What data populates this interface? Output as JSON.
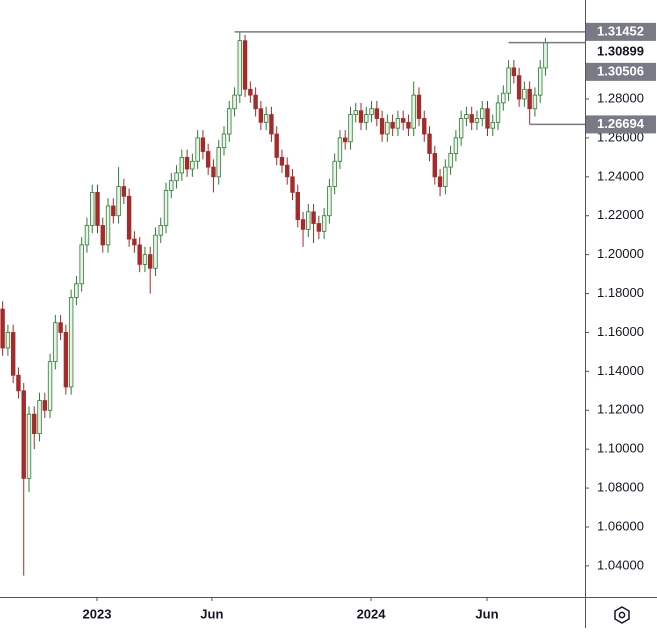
{
  "chart_data": {
    "type": "candlestick",
    "open": [
      1.172,
      1.152,
      1.16,
      1.138,
      1.13,
      1.085,
      1.118,
      1.108,
      1.125,
      1.12,
      1.145,
      1.165,
      1.16,
      1.132,
      1.178,
      1.185,
      1.205,
      1.215,
      1.232,
      1.215,
      1.205,
      1.225,
      1.22,
      1.235,
      1.23,
      1.208,
      1.205,
      1.195,
      1.2,
      1.193,
      1.21,
      1.215,
      1.233,
      1.238,
      1.242,
      1.25,
      1.244,
      1.248,
      1.26,
      1.253,
      1.245,
      1.24,
      1.255,
      1.262,
      1.275,
      1.282,
      1.31,
      1.285,
      1.282,
      1.275,
      1.268,
      1.272,
      1.262,
      1.25,
      1.246,
      1.24,
      1.232,
      1.218,
      1.213,
      1.222,
      1.216,
      1.212,
      1.22,
      1.235,
      1.248,
      1.26,
      1.258,
      1.272,
      1.274,
      1.268,
      1.272,
      1.275,
      1.27,
      1.262,
      1.268,
      1.265,
      1.27,
      1.268,
      1.265,
      1.282,
      1.27,
      1.262,
      1.252,
      1.24,
      1.235,
      1.245,
      1.252,
      1.26,
      1.27,
      1.272,
      1.268,
      1.27,
      1.275,
      1.265,
      1.268,
      1.278,
      1.283,
      1.296,
      1.292,
      1.28,
      1.285,
      1.275,
      1.282,
      1.296
    ],
    "high": [
      1.176,
      1.164,
      1.164,
      1.142,
      1.134,
      1.122,
      1.122,
      1.129,
      1.129,
      1.149,
      1.169,
      1.169,
      1.164,
      1.182,
      1.189,
      1.209,
      1.219,
      1.236,
      1.236,
      1.219,
      1.229,
      1.229,
      1.245,
      1.239,
      1.234,
      1.212,
      1.209,
      1.204,
      1.204,
      1.214,
      1.219,
      1.237,
      1.242,
      1.246,
      1.254,
      1.254,
      1.252,
      1.264,
      1.264,
      1.257,
      1.249,
      1.259,
      1.266,
      1.279,
      1.286,
      1.3145,
      1.313,
      1.289,
      1.286,
      1.279,
      1.276,
      1.276,
      1.266,
      1.254,
      1.25,
      1.244,
      1.236,
      1.222,
      1.226,
      1.226,
      1.22,
      1.224,
      1.239,
      1.252,
      1.264,
      1.264,
      1.276,
      1.278,
      1.278,
      1.276,
      1.279,
      1.279,
      1.274,
      1.272,
      1.272,
      1.274,
      1.274,
      1.272,
      1.289,
      1.286,
      1.274,
      1.266,
      1.256,
      1.244,
      1.249,
      1.256,
      1.264,
      1.274,
      1.276,
      1.276,
      1.274,
      1.279,
      1.279,
      1.272,
      1.282,
      1.287,
      1.3,
      1.3,
      1.296,
      1.289,
      1.289,
      1.286,
      1.3,
      1.3113
    ],
    "low": [
      1.148,
      1.148,
      1.134,
      1.126,
      1.035,
      1.078,
      1.1,
      1.104,
      1.116,
      1.116,
      1.141,
      1.156,
      1.128,
      1.128,
      1.174,
      1.181,
      1.201,
      1.211,
      1.211,
      1.201,
      1.201,
      1.216,
      1.216,
      1.226,
      1.204,
      1.201,
      1.191,
      1.191,
      1.18,
      1.189,
      1.206,
      1.211,
      1.229,
      1.234,
      1.238,
      1.24,
      1.24,
      1.244,
      1.249,
      1.241,
      1.232,
      1.236,
      1.251,
      1.258,
      1.271,
      1.278,
      1.281,
      1.278,
      1.271,
      1.264,
      1.264,
      1.258,
      1.246,
      1.242,
      1.236,
      1.228,
      1.214,
      1.204,
      1.209,
      1.206,
      1.208,
      1.208,
      1.216,
      1.231,
      1.244,
      1.254,
      1.254,
      1.268,
      1.264,
      1.264,
      1.268,
      1.266,
      1.258,
      1.258,
      1.261,
      1.261,
      1.264,
      1.261,
      1.261,
      1.266,
      1.258,
      1.248,
      1.236,
      1.23,
      1.231,
      1.241,
      1.248,
      1.256,
      1.266,
      1.264,
      1.264,
      1.266,
      1.261,
      1.261,
      1.264,
      1.274,
      1.279,
      1.288,
      1.276,
      1.276,
      1.2669,
      1.271,
      1.278,
      1.292
    ],
    "close": [
      1.152,
      1.16,
      1.138,
      1.13,
      1.085,
      1.118,
      1.108,
      1.125,
      1.12,
      1.145,
      1.165,
      1.16,
      1.132,
      1.178,
      1.185,
      1.205,
      1.215,
      1.232,
      1.215,
      1.205,
      1.225,
      1.22,
      1.235,
      1.23,
      1.208,
      1.205,
      1.195,
      1.2,
      1.193,
      1.21,
      1.215,
      1.233,
      1.238,
      1.242,
      1.25,
      1.244,
      1.248,
      1.26,
      1.253,
      1.245,
      1.24,
      1.255,
      1.262,
      1.275,
      1.282,
      1.31,
      1.285,
      1.282,
      1.275,
      1.268,
      1.272,
      1.262,
      1.25,
      1.246,
      1.24,
      1.232,
      1.218,
      1.213,
      1.222,
      1.216,
      1.212,
      1.22,
      1.235,
      1.248,
      1.26,
      1.258,
      1.272,
      1.274,
      1.268,
      1.272,
      1.275,
      1.27,
      1.262,
      1.268,
      1.265,
      1.27,
      1.268,
      1.265,
      1.282,
      1.27,
      1.262,
      1.252,
      1.24,
      1.235,
      1.245,
      1.252,
      1.26,
      1.27,
      1.272,
      1.268,
      1.27,
      1.275,
      1.265,
      1.268,
      1.278,
      1.283,
      1.296,
      1.292,
      1.28,
      1.285,
      1.275,
      1.282,
      1.296,
      1.30899
    ],
    "up_color": "#2e7d32",
    "down_color": "#a52a2a",
    "xlim": [
      -0.5,
      110.5
    ],
    "xticks": [
      {
        "value": 17.9,
        "label": "2023"
      },
      {
        "value": 39.7,
        "label": "Jun"
      },
      {
        "value": 69.9,
        "label": "2024"
      },
      {
        "value": 91.9,
        "label": "Jun"
      }
    ],
    "ylim": [
      1.024,
      1.3309
    ],
    "yticks": [
      {
        "value": 1.04,
        "label": "1.04000"
      },
      {
        "value": 1.06,
        "label": "1.06000"
      },
      {
        "value": 1.08,
        "label": "1.08000"
      },
      {
        "value": 1.1,
        "label": "1.10000"
      },
      {
        "value": 1.12,
        "label": "1.12000"
      },
      {
        "value": 1.14,
        "label": "1.14000"
      },
      {
        "value": 1.16,
        "label": "1.16000"
      },
      {
        "value": 1.18,
        "label": "1.18000"
      },
      {
        "value": 1.2,
        "label": "1.20000"
      },
      {
        "value": 1.22,
        "label": "1.22000"
      },
      {
        "value": 1.24,
        "label": "1.24000"
      },
      {
        "value": 1.26,
        "label": "1.26000"
      },
      {
        "value": 1.28,
        "label": "1.28000"
      }
    ],
    "grid": false,
    "price_lines": [
      {
        "value": 1.31452,
        "x": 44,
        "boxed": true
      },
      {
        "value": 1.30899,
        "x": 96,
        "boxed": false
      },
      {
        "value": 1.30506,
        "boxed": true
      },
      {
        "value": 1.26694,
        "x": 100,
        "boxed": true
      }
    ]
  }
}
